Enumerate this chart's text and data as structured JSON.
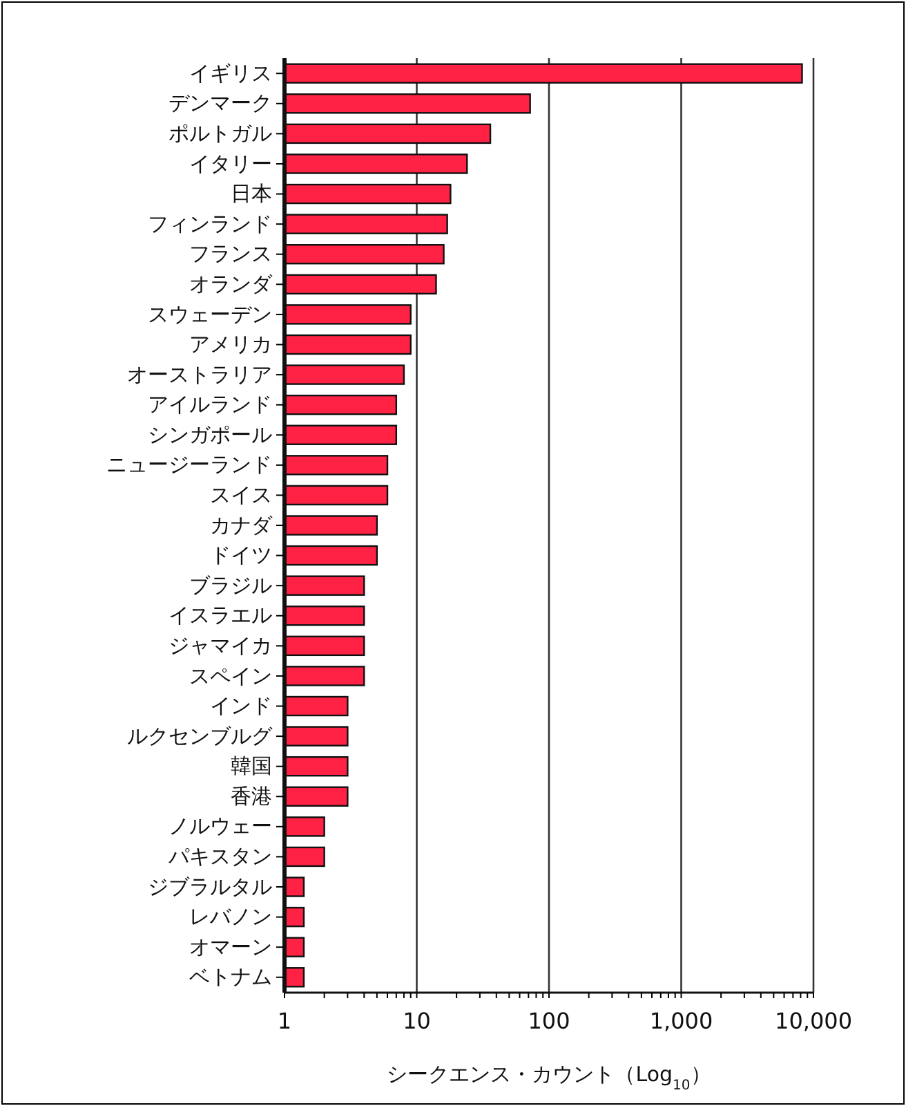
{
  "chart_data": {
    "type": "bar",
    "orientation": "horizontal",
    "log": "x",
    "grid": "x",
    "xlabel": "シークエンス・カウント（Log$_{10}$）",
    "categories": [
      "イギリス",
      "デンマーク",
      "ポルトガル",
      "イタリー",
      "日本",
      "フィンランド",
      "フランス",
      "オランダ",
      "スウェーデン",
      "アメリカ",
      "オーストラリア",
      "アイルランド",
      "シンガポール",
      "ニュージーランド",
      "スイス",
      "カナダ",
      "ドイツ",
      "ブラジル",
      "イスラエル",
      "ジャマイカ",
      "スペイン",
      "インド",
      "ルクセンブルグ",
      "韓国",
      "香港",
      "ノルウェー",
      "パキスタン",
      "ジブラルタル",
      "レバノン",
      "オマーン",
      "ベトナム"
    ],
    "values": [
      8200,
      72,
      36,
      24,
      18,
      17,
      16,
      14,
      9,
      9,
      8,
      7,
      7,
      6,
      6,
      5,
      5,
      4,
      4,
      4,
      4,
      3,
      3,
      3,
      3,
      2,
      2,
      1.4,
      1.4,
      1.4,
      1.4
    ],
    "color": "#ff2244",
    "xlim": [
      1,
      10000
    ],
    "xticks": [
      1,
      {
        "value": 2,
        "label": null
      },
      {
        "value": 3,
        "label": null
      },
      {
        "value": 4,
        "label": null
      },
      {
        "value": 5,
        "label": null
      },
      {
        "value": 6,
        "label": null
      },
      {
        "value": 7,
        "label": null
      },
      {
        "value": 8,
        "label": null
      },
      {
        "value": 9,
        "label": null
      },
      10,
      {
        "value": 20,
        "label": null
      },
      {
        "value": 30,
        "label": null
      },
      {
        "value": 40,
        "label": null
      },
      {
        "value": 50,
        "label": null
      },
      {
        "value": 60,
        "label": null
      },
      {
        "value": 70,
        "label": null
      },
      {
        "value": 80,
        "label": null
      },
      {
        "value": 90,
        "label": null
      },
      100,
      {
        "value": 200,
        "label": null
      },
      {
        "value": 300,
        "label": null
      },
      {
        "value": 400,
        "label": null
      },
      {
        "value": 500,
        "label": null
      },
      {
        "value": 600,
        "label": null
      },
      {
        "value": 700,
        "label": null
      },
      {
        "value": 800,
        "label": null
      },
      {
        "value": 900,
        "label": null
      },
      {
        "value": 1000,
        "label": "1,000"
      },
      {
        "value": 2000,
        "label": null
      },
      {
        "value": 3000,
        "label": null
      },
      {
        "value": 4000,
        "label": null
      },
      {
        "value": 5000,
        "label": null
      },
      {
        "value": 6000,
        "label": null
      },
      {
        "value": 7000,
        "label": null
      },
      {
        "value": 8000,
        "label": null
      },
      {
        "value": 9000,
        "label": null
      },
      {
        "value": 10000,
        "label": "10,000"
      }
    ]
  }
}
